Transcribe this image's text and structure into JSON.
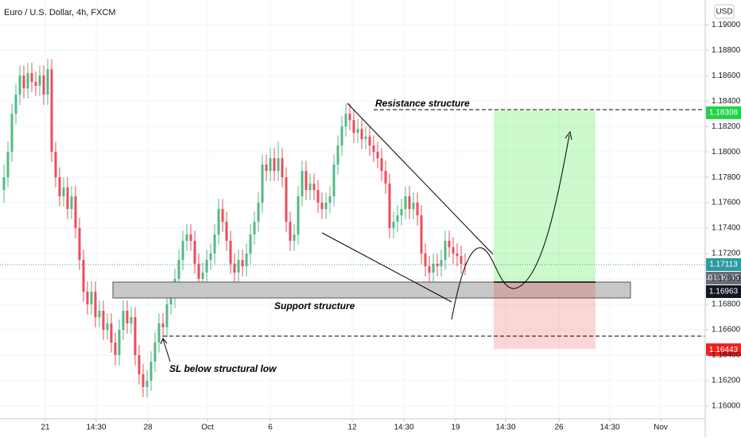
{
  "chart_data": {
    "type": "candlestick",
    "title": "Euro / U.S. Dollar, 4h, FXCM",
    "currency": "USD",
    "up_color": "#53b987",
    "down_color": "#eb4d5c",
    "grid": true,
    "ylim": [
      1.159,
      1.19195
    ],
    "yticks": [
      {
        "value": 1.16,
        "label": "1.16000"
      },
      {
        "value": 1.162,
        "label": "1.16200"
      },
      {
        "value": 1.164,
        "label": "1.16400"
      },
      {
        "value": 1.166,
        "label": "1.16600"
      },
      {
        "value": 1.168,
        "label": "1.16800"
      },
      {
        "value": 1.17,
        "label": "1.17000"
      },
      {
        "value": 1.172,
        "label": "1.17200"
      },
      {
        "value": 1.174,
        "label": "1.17400"
      },
      {
        "value": 1.176,
        "label": "1.17600"
      },
      {
        "value": 1.178,
        "label": "1.17800"
      },
      {
        "value": 1.18,
        "label": "1.18000"
      },
      {
        "value": 1.182,
        "label": "1.18200"
      },
      {
        "value": 1.184,
        "label": "1.18400"
      },
      {
        "value": 1.186,
        "label": "1.18600"
      },
      {
        "value": 1.188,
        "label": "1.18800"
      },
      {
        "value": 1.19,
        "label": "1.19000"
      }
    ],
    "xlim": [
      -1,
      176.2
    ],
    "xticks": [
      {
        "value": 10.4,
        "label": "21"
      },
      {
        "value": 23.2,
        "label": "14:30"
      },
      {
        "value": 36.2,
        "label": "28"
      },
      {
        "value": 51.2,
        "label": "Oct"
      },
      {
        "value": 67,
        "label": "6"
      },
      {
        "value": 87.6,
        "label": "12"
      },
      {
        "value": 100.6,
        "label": "14:30"
      },
      {
        "value": 113.6,
        "label": "19"
      },
      {
        "value": 126.2,
        "label": "14:30"
      },
      {
        "value": 139.6,
        "label": "26"
      },
      {
        "value": 152.4,
        "label": "14:30"
      },
      {
        "value": 165.2,
        "label": "Nov"
      }
    ],
    "ohlc": [
      [
        1.177,
        1.179,
        1.176,
        1.178
      ],
      [
        1.178,
        1.1808,
        1.1772,
        1.18
      ],
      [
        1.18,
        1.1838,
        1.1792,
        1.183
      ],
      [
        1.183,
        1.1853,
        1.1822,
        1.1845
      ],
      [
        1.1845,
        1.1868,
        1.1837,
        1.186
      ],
      [
        1.186,
        1.1868,
        1.1842,
        1.185
      ],
      [
        1.185,
        1.187,
        1.1842,
        1.1862
      ],
      [
        1.1862,
        1.187,
        1.1847,
        1.1855
      ],
      [
        1.1855,
        1.1863,
        1.1844,
        1.1852
      ],
      [
        1.1852,
        1.1868,
        1.1844,
        1.186
      ],
      [
        1.186,
        1.1868,
        1.1837,
        1.1845
      ],
      [
        1.1845,
        1.1873,
        1.1837,
        1.1865
      ],
      [
        1.1865,
        1.1873,
        1.1792,
        1.18
      ],
      [
        1.18,
        1.1808,
        1.1772,
        1.178
      ],
      [
        1.178,
        1.1788,
        1.1757,
        1.1765
      ],
      [
        1.1765,
        1.178,
        1.1757,
        1.1772
      ],
      [
        1.1772,
        1.178,
        1.1747,
        1.1755
      ],
      [
        1.1755,
        1.1773,
        1.1747,
        1.1765
      ],
      [
        1.1765,
        1.1773,
        1.1732,
        1.174
      ],
      [
        1.174,
        1.1748,
        1.1707,
        1.1715
      ],
      [
        1.1715,
        1.1723,
        1.1682,
        1.169
      ],
      [
        1.169,
        1.1698,
        1.1672,
        1.168
      ],
      [
        1.168,
        1.1698,
        1.1672,
        1.169
      ],
      [
        1.169,
        1.1698,
        1.1662,
        1.167
      ],
      [
        1.167,
        1.1683,
        1.1662,
        1.1675
      ],
      [
        1.1675,
        1.1683,
        1.1652,
        1.166
      ],
      [
        1.166,
        1.1673,
        1.1652,
        1.1665
      ],
      [
        1.1665,
        1.1673,
        1.1642,
        1.165
      ],
      [
        1.165,
        1.1658,
        1.1632,
        1.164
      ],
      [
        1.164,
        1.1668,
        1.1632,
        1.166
      ],
      [
        1.166,
        1.1683,
        1.1652,
        1.1675
      ],
      [
        1.1675,
        1.1683,
        1.1657,
        1.1665
      ],
      [
        1.1665,
        1.1678,
        1.1657,
        1.167
      ],
      [
        1.167,
        1.1678,
        1.1632,
        1.164
      ],
      [
        1.164,
        1.1648,
        1.1617,
        1.1625
      ],
      [
        1.1625,
        1.1633,
        1.1607,
        1.1615
      ],
      [
        1.1615,
        1.1628,
        1.1607,
        1.162
      ],
      [
        1.162,
        1.1643,
        1.1612,
        1.1635
      ],
      [
        1.1635,
        1.1658,
        1.1627,
        1.165
      ],
      [
        1.165,
        1.1673,
        1.1642,
        1.1665
      ],
      [
        1.1665,
        1.1673,
        1.1654,
        1.1662
      ],
      [
        1.1662,
        1.1688,
        1.1654,
        1.168
      ],
      [
        1.168,
        1.1693,
        1.1672,
        1.1685
      ],
      [
        1.1685,
        1.1708,
        1.1677,
        1.17
      ],
      [
        1.17,
        1.1723,
        1.1692,
        1.1715
      ],
      [
        1.1715,
        1.1738,
        1.1707,
        1.173
      ],
      [
        1.173,
        1.1743,
        1.1722,
        1.1735
      ],
      [
        1.1735,
        1.1743,
        1.1722,
        1.173
      ],
      [
        1.173,
        1.1738,
        1.1704,
        1.1712
      ],
      [
        1.1712,
        1.172,
        1.1692,
        1.17
      ],
      [
        1.17,
        1.1713,
        1.1692,
        1.1705
      ],
      [
        1.1705,
        1.1723,
        1.1697,
        1.1715
      ],
      [
        1.1715,
        1.1728,
        1.1707,
        1.172
      ],
      [
        1.172,
        1.1743,
        1.1712,
        1.1735
      ],
      [
        1.1735,
        1.1763,
        1.1727,
        1.1755
      ],
      [
        1.1755,
        1.1763,
        1.1737,
        1.1745
      ],
      [
        1.1745,
        1.1753,
        1.1722,
        1.173
      ],
      [
        1.173,
        1.1738,
        1.1704,
        1.1712
      ],
      [
        1.1712,
        1.172,
        1.1697,
        1.1705
      ],
      [
        1.1705,
        1.1723,
        1.1697,
        1.1715
      ],
      [
        1.1715,
        1.1723,
        1.1702,
        1.171
      ],
      [
        1.171,
        1.1728,
        1.1702,
        1.172
      ],
      [
        1.172,
        1.1743,
        1.1712,
        1.1735
      ],
      [
        1.1735,
        1.1753,
        1.1727,
        1.1745
      ],
      [
        1.1745,
        1.1768,
        1.1737,
        1.176
      ],
      [
        1.176,
        1.1798,
        1.1752,
        1.179
      ],
      [
        1.179,
        1.1798,
        1.1777,
        1.1785
      ],
      [
        1.1785,
        1.1803,
        1.1777,
        1.1795
      ],
      [
        1.1795,
        1.1803,
        1.1777,
        1.1785
      ],
      [
        1.1785,
        1.1808,
        1.1777,
        1.1795
      ],
      [
        1.1795,
        1.1803,
        1.1772,
        1.178
      ],
      [
        1.178,
        1.1788,
        1.1737,
        1.1745
      ],
      [
        1.1745,
        1.1753,
        1.1722,
        1.173
      ],
      [
        1.173,
        1.1743,
        1.1722,
        1.1735
      ],
      [
        1.1735,
        1.1773,
        1.1727,
        1.1765
      ],
      [
        1.1765,
        1.1793,
        1.1757,
        1.1785
      ],
      [
        1.1785,
        1.1793,
        1.1762,
        1.177
      ],
      [
        1.177,
        1.1783,
        1.1762,
        1.1775
      ],
      [
        1.1775,
        1.1783,
        1.1762,
        1.177
      ],
      [
        1.177,
        1.1778,
        1.1752,
        1.176
      ],
      [
        1.176,
        1.1768,
        1.1747,
        1.1755
      ],
      [
        1.1755,
        1.1768,
        1.1747,
        1.176
      ],
      [
        1.176,
        1.1773,
        1.1752,
        1.1765
      ],
      [
        1.1765,
        1.1798,
        1.1757,
        1.179
      ],
      [
        1.179,
        1.1813,
        1.1782,
        1.1805
      ],
      [
        1.1805,
        1.1828,
        1.1797,
        1.182
      ],
      [
        1.182,
        1.1838,
        1.1812,
        1.183
      ],
      [
        1.183,
        1.1838,
        1.1817,
        1.1825
      ],
      [
        1.1825,
        1.1833,
        1.1807,
        1.1815
      ],
      [
        1.1815,
        1.1826,
        1.1807,
        1.1818
      ],
      [
        1.1818,
        1.1826,
        1.1802,
        1.181
      ],
      [
        1.181,
        1.182,
        1.1802,
        1.1812
      ],
      [
        1.1812,
        1.182,
        1.1797,
        1.1805
      ],
      [
        1.1805,
        1.1813,
        1.1792,
        1.18
      ],
      [
        1.18,
        1.1808,
        1.1787,
        1.1795
      ],
      [
        1.1795,
        1.1803,
        1.1777,
        1.1785
      ],
      [
        1.1785,
        1.1793,
        1.1767,
        1.1775
      ],
      [
        1.1775,
        1.1783,
        1.1732,
        1.174
      ],
      [
        1.174,
        1.1753,
        1.1732,
        1.1745
      ],
      [
        1.1745,
        1.1758,
        1.1737,
        1.175
      ],
      [
        1.175,
        1.1763,
        1.1742,
        1.1755
      ],
      [
        1.1755,
        1.1773,
        1.1747,
        1.1765
      ],
      [
        1.1765,
        1.1773,
        1.1747,
        1.1755
      ],
      [
        1.1755,
        1.1768,
        1.1747,
        1.176
      ],
      [
        1.176,
        1.1768,
        1.1742,
        1.175
      ],
      [
        1.175,
        1.1758,
        1.1712,
        1.172
      ],
      [
        1.172,
        1.1728,
        1.1702,
        1.171
      ],
      [
        1.171,
        1.1718,
        1.1697,
        1.1705
      ],
      [
        1.1705,
        1.172,
        1.1697,
        1.1712
      ],
      [
        1.1712,
        1.172,
        1.1702,
        1.171
      ],
      [
        1.171,
        1.1723,
        1.1702,
        1.1715
      ],
      [
        1.1715,
        1.1738,
        1.1707,
        1.173
      ],
      [
        1.173,
        1.1738,
        1.1717,
        1.1725
      ],
      [
        1.1725,
        1.1733,
        1.1712,
        1.172
      ],
      [
        1.172,
        1.1728,
        1.171,
        1.1718
      ],
      [
        1.1718,
        1.1726,
        1.1704,
        1.1712
      ],
      [
        1.1712,
        1.172,
        1.1703,
        1.1711
      ]
    ],
    "price_labels": [
      {
        "value": 1.18308,
        "color": "#22d14a"
      },
      {
        "value": 1.17113,
        "color": "#2f9ba0"
      },
      {
        "value": 1.16963,
        "color": "#131722"
      },
      {
        "value": 1.16443,
        "color": "#f01e1e"
      }
    ],
    "countdown": "01:36:45",
    "annotations": [
      "Resistance structure",
      "Support structure",
      "SL below structural low"
    ]
  }
}
